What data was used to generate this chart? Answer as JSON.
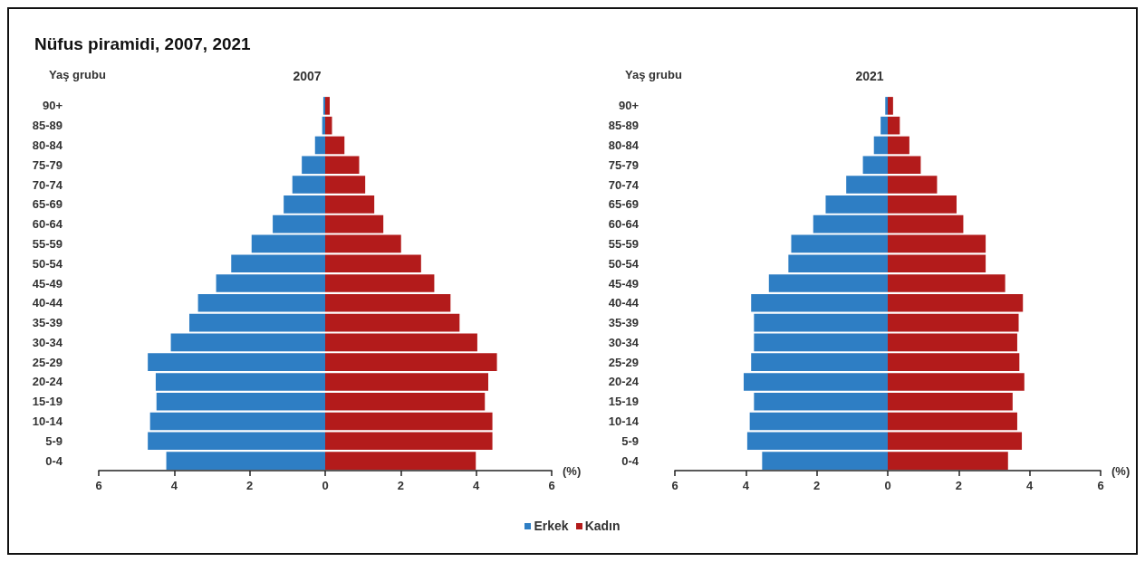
{
  "chart_data": [
    {
      "type": "bar",
      "orientation": "horizontal",
      "stacked": true,
      "title": "Nüfus piramidi, 2007, 2021",
      "subtitle": "2007",
      "ylabel": "Yaş grubu",
      "xlabel": "(%)",
      "categories": [
        "90+",
        "85-89",
        "80-84",
        "75-79",
        "70-74",
        "65-69",
        "60-64",
        "55-59",
        "50-54",
        "45-49",
        "40-44",
        "35-39",
        "30-34",
        "25-29",
        "20-24",
        "15-19",
        "10-14",
        "5-9",
        "0-4"
      ],
      "series": [
        {
          "name": "Erkek",
          "color": "#2e7ec4",
          "values": [
            -0.05,
            -0.08,
            -0.27,
            -0.62,
            -0.87,
            -1.1,
            -1.39,
            -1.95,
            -2.49,
            -2.89,
            -3.37,
            -3.6,
            -4.09,
            -4.7,
            -4.49,
            -4.47,
            -4.64,
            -4.7,
            -4.21
          ]
        },
        {
          "name": "Kadın",
          "color": "#b31b1b",
          "values": [
            0.12,
            0.18,
            0.51,
            0.9,
            1.06,
            1.3,
            1.54,
            2.01,
            2.54,
            2.89,
            3.32,
            3.56,
            4.03,
            4.55,
            4.32,
            4.23,
            4.43,
            4.43,
            3.99
          ]
        }
      ],
      "xlim": [
        -6,
        6
      ],
      "xticks": [
        {
          "value": -6,
          "label": "6"
        },
        {
          "value": -4,
          "label": "4"
        },
        {
          "value": -2,
          "label": "2"
        },
        0,
        2,
        4,
        6
      ],
      "grid": false,
      "legend": "bottom"
    },
    {
      "type": "bar",
      "orientation": "horizontal",
      "stacked": true,
      "title": "2021",
      "ylabel": "Yaş grubu",
      "xlabel": "(%)",
      "categories": [
        "90+",
        "85-89",
        "80-84",
        "75-79",
        "70-74",
        "65-69",
        "60-64",
        "55-59",
        "50-54",
        "45-49",
        "40-44",
        "35-39",
        "30-34",
        "25-29",
        "20-24",
        "15-19",
        "10-14",
        "5-9",
        "0-4"
      ],
      "series": [
        {
          "name": "Erkek",
          "color": "#2e7ec4",
          "values": [
            -0.07,
            -0.2,
            -0.39,
            -0.7,
            -1.17,
            -1.75,
            -2.1,
            -2.72,
            -2.8,
            -3.35,
            -3.85,
            -3.77,
            -3.77,
            -3.85,
            -4.06,
            -3.77,
            -3.89,
            -3.96,
            -3.54
          ]
        },
        {
          "name": "Kadın",
          "color": "#b31b1b",
          "values": [
            0.15,
            0.34,
            0.61,
            0.93,
            1.39,
            1.94,
            2.13,
            2.76,
            2.76,
            3.31,
            3.81,
            3.69,
            3.65,
            3.71,
            3.85,
            3.52,
            3.65,
            3.78,
            3.39
          ]
        }
      ],
      "xlim": [
        -6,
        6
      ],
      "xticks": [
        {
          "value": -6,
          "label": "6"
        },
        {
          "value": -4,
          "label": "4"
        },
        {
          "value": -2,
          "label": "2"
        },
        0,
        2,
        4,
        6
      ],
      "grid": false,
      "legend": "bottom"
    }
  ]
}
